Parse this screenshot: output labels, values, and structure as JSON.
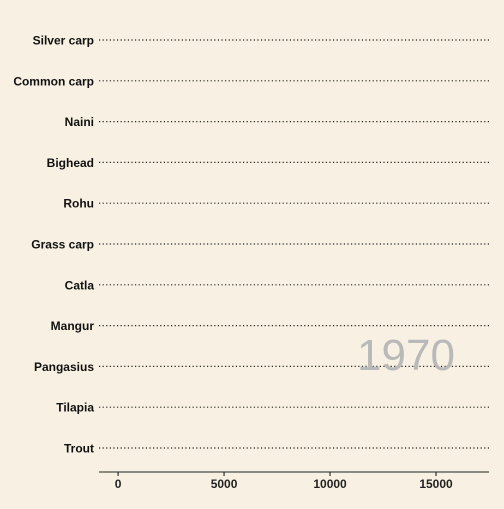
{
  "chart_data": {
    "type": "bar",
    "orientation": "horizontal",
    "categories": [
      "Silver carp",
      "Common carp",
      "Naini",
      "Bighead",
      "Rohu",
      "Grass carp",
      "Catla",
      "Mangur",
      "Pangasius",
      "Tilapia",
      "Trout"
    ],
    "values": [
      0,
      0,
      0,
      0,
      0,
      0,
      0,
      0,
      0,
      0,
      0
    ],
    "annotation": "1970",
    "x_ticks": [
      0,
      5000,
      10000,
      15000
    ],
    "x_tick_labels": [
      "0",
      "5000",
      "10000",
      "15000"
    ],
    "xlim": [
      -900,
      17500
    ],
    "grid": "dotted horizontal lines per category",
    "legend": "none"
  },
  "colors": {
    "background": "#f8f1e3",
    "gridline": "#222222",
    "axis": "#222222",
    "annotation": "#b9b9b9"
  }
}
